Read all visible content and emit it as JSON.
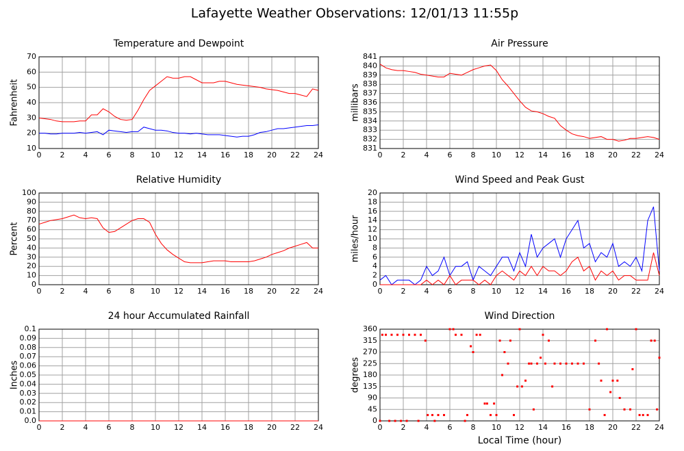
{
  "title": "Lafayette Weather Observations: 12/01/13 11:55p",
  "chart_data": [
    {
      "type": "line",
      "title": "Temperature and Dewpoint",
      "ylabel": "Fahrenheit",
      "x": [
        0,
        0.5,
        1,
        1.5,
        2,
        2.5,
        3,
        3.5,
        4,
        4.5,
        5,
        5.5,
        6,
        6.5,
        7,
        7.5,
        8,
        8.5,
        9,
        9.5,
        10,
        10.5,
        11,
        11.5,
        12,
        12.5,
        13,
        13.5,
        14,
        14.5,
        15,
        15.5,
        16,
        16.5,
        17,
        17.5,
        18,
        18.5,
        19,
        19.5,
        20,
        20.5,
        21,
        21.5,
        22,
        22.5,
        23,
        23.5,
        24
      ],
      "series": [
        {
          "color": "#ff0000",
          "values": [
            30,
            29.5,
            29,
            28,
            27.5,
            27.5,
            27.5,
            28,
            28,
            32,
            32,
            36,
            34,
            31,
            29,
            28.5,
            29,
            35,
            42,
            48,
            51,
            54,
            57,
            56,
            56,
            57,
            57,
            55,
            53,
            53,
            53,
            54,
            54,
            53,
            52,
            51.5,
            51,
            50.5,
            50,
            49,
            48.5,
            48,
            47,
            46,
            46,
            45,
            44,
            49,
            48
          ]
        },
        {
          "color": "#0000ff",
          "values": [
            20,
            20,
            19.5,
            19.5,
            20,
            20,
            20,
            20.5,
            20,
            20.5,
            21,
            19,
            22,
            21.5,
            21,
            20.5,
            21,
            21,
            24,
            23,
            22,
            22,
            21.5,
            20.5,
            20,
            20,
            19.5,
            20,
            19.5,
            19,
            19,
            19,
            18.5,
            18,
            17.5,
            18,
            18,
            19,
            20.5,
            21,
            22,
            23,
            23,
            23.5,
            24,
            24.5,
            25,
            25,
            25.5
          ]
        }
      ],
      "xlim": [
        0,
        24
      ],
      "xticks": [
        0,
        2,
        4,
        6,
        8,
        10,
        12,
        14,
        16,
        18,
        20,
        22,
        24
      ],
      "ylim": [
        10,
        70
      ],
      "yticks": [
        10,
        20,
        30,
        40,
        50,
        60,
        70
      ],
      "grid": true
    },
    {
      "type": "line",
      "title": "Air Pressure",
      "ylabel": "millibars",
      "x": [
        0,
        0.5,
        1,
        1.5,
        2,
        2.5,
        3,
        3.5,
        4,
        4.5,
        5,
        5.5,
        6,
        6.5,
        7,
        7.5,
        8,
        8.5,
        9,
        9.5,
        10,
        10.5,
        11,
        11.5,
        12,
        12.5,
        13,
        13.5,
        14,
        14.5,
        15,
        15.5,
        16,
        16.5,
        17,
        17.5,
        18,
        18.5,
        19,
        19.5,
        20,
        20.5,
        21,
        21.5,
        22,
        22.5,
        23,
        23.5,
        24
      ],
      "series": [
        {
          "color": "#ff0000",
          "values": [
            840.2,
            839.8,
            839.6,
            839.5,
            839.5,
            839.4,
            839.3,
            839.1,
            839,
            838.9,
            838.8,
            838.8,
            839.2,
            839.1,
            839,
            839.3,
            839.6,
            839.8,
            840,
            840.1,
            839.5,
            838.5,
            837.8,
            837,
            836.2,
            835.5,
            835.1,
            835,
            834.8,
            834.5,
            834.3,
            833.5,
            833,
            832.6,
            832.4,
            832.3,
            832.1,
            832.2,
            832.3,
            832,
            832,
            831.8,
            831.9,
            832.1,
            832.1,
            832.2,
            832.3,
            832.2,
            832
          ]
        }
      ],
      "xlim": [
        0,
        24
      ],
      "xticks": [
        0,
        2,
        4,
        6,
        8,
        10,
        12,
        14,
        16,
        18,
        20,
        22,
        24
      ],
      "ylim": [
        831,
        841
      ],
      "yticks": [
        831,
        832,
        833,
        834,
        835,
        836,
        837,
        838,
        839,
        840,
        841
      ],
      "grid": true
    },
    {
      "type": "line",
      "title": "Relative Humidity",
      "ylabel": "Percent",
      "x": [
        0,
        0.5,
        1,
        1.5,
        2,
        2.5,
        3,
        3.5,
        4,
        4.5,
        5,
        5.5,
        6,
        6.5,
        7,
        7.5,
        8,
        8.5,
        9,
        9.5,
        10,
        10.5,
        11,
        11.5,
        12,
        12.5,
        13,
        13.5,
        14,
        14.5,
        15,
        15.5,
        16,
        16.5,
        17,
        17.5,
        18,
        18.5,
        19,
        19.5,
        20,
        20.5,
        21,
        21.5,
        22,
        22.5,
        23,
        23.5,
        24
      ],
      "series": [
        {
          "color": "#ff0000",
          "values": [
            66,
            68,
            70,
            71,
            72,
            74,
            76,
            73,
            72,
            73,
            72,
            62,
            57,
            58,
            62,
            66,
            70,
            72,
            72,
            68,
            55,
            45,
            38,
            33,
            29,
            25,
            24,
            24,
            24,
            25,
            26,
            26,
            26,
            25,
            25,
            25,
            25,
            26,
            28,
            30,
            33,
            35,
            37,
            40,
            42,
            44,
            46,
            40,
            40
          ]
        }
      ],
      "xlim": [
        0,
        24
      ],
      "xticks": [
        0,
        2,
        4,
        6,
        8,
        10,
        12,
        14,
        16,
        18,
        20,
        22,
        24
      ],
      "ylim": [
        0,
        100
      ],
      "yticks": [
        0,
        10,
        20,
        30,
        40,
        50,
        60,
        70,
        80,
        90,
        100
      ],
      "grid": true
    },
    {
      "type": "line",
      "title": "Wind Speed and Peak Gust",
      "ylabel": "miles/hour",
      "x": [
        0,
        0.5,
        1,
        1.5,
        2,
        2.5,
        3,
        3.5,
        4,
        4.5,
        5,
        5.5,
        6,
        6.5,
        7,
        7.5,
        8,
        8.5,
        9,
        9.5,
        10,
        10.5,
        11,
        11.5,
        12,
        12.5,
        13,
        13.5,
        14,
        14.5,
        15,
        15.5,
        16,
        16.5,
        17,
        17.5,
        18,
        18.5,
        19,
        19.5,
        20,
        20.5,
        21,
        21.5,
        22,
        22.5,
        23,
        23.5,
        24
      ],
      "series": [
        {
          "color": "#0000ff",
          "values": [
            1,
            2,
            0,
            1,
            1,
            1,
            0,
            1,
            4,
            2,
            3,
            6,
            2,
            4,
            4,
            5,
            1,
            4,
            3,
            2,
            4,
            6,
            6,
            3,
            7,
            4,
            11,
            6,
            8,
            9,
            10,
            6,
            10,
            12,
            14,
            8,
            9,
            5,
            7,
            6,
            9,
            4,
            5,
            4,
            6,
            3,
            14,
            17,
            3
          ]
        },
        {
          "color": "#ff0000",
          "values": [
            0,
            0,
            0,
            0,
            0,
            0,
            0,
            0,
            1,
            0,
            1,
            0,
            2,
            0,
            1,
            1,
            1,
            0,
            1,
            0,
            2,
            3,
            2,
            1,
            3,
            2,
            4,
            2,
            4,
            3,
            3,
            2,
            3,
            5,
            6,
            3,
            4,
            1,
            3,
            2,
            3,
            1,
            2,
            2,
            1,
            1,
            1,
            7,
            2
          ]
        }
      ],
      "xlim": [
        0,
        24
      ],
      "xticks": [
        0,
        2,
        4,
        6,
        8,
        10,
        12,
        14,
        16,
        18,
        20,
        22,
        24
      ],
      "ylim": [
        0,
        20
      ],
      "yticks": [
        0,
        2,
        4,
        6,
        8,
        10,
        12,
        14,
        16,
        18,
        20
      ],
      "grid": true
    },
    {
      "type": "line",
      "title": "24 hour Accumulated Rainfall",
      "ylabel": "Inches",
      "x": [
        0,
        24
      ],
      "series": [
        {
          "color": "#ff0000",
          "values": [
            0,
            0
          ]
        }
      ],
      "xlim": [
        0,
        24
      ],
      "xticks": [
        0,
        2,
        4,
        6,
        8,
        10,
        12,
        14,
        16,
        18,
        20,
        22,
        24
      ],
      "ylim": [
        0,
        0.1
      ],
      "yticks": [
        {
          "value": 0,
          "label": "0.0"
        },
        0.01,
        0.02,
        0.03,
        0.04,
        0.05,
        0.06,
        0.07,
        0.08,
        0.09,
        0.1
      ],
      "grid": true
    },
    {
      "type": "scatter",
      "title": "Wind Direction",
      "ylabel": "degrees",
      "xlabel": "Local Time (hour)",
      "x": [
        0,
        0.2,
        0.5,
        0.8,
        1,
        1.3,
        1.5,
        1.8,
        2,
        2.3,
        2.5,
        3,
        3.3,
        3.5,
        3.9,
        4.1,
        4.5,
        4.7,
        5,
        5.5,
        6,
        6.3,
        6.5,
        7,
        7.3,
        7.5,
        7.8,
        8,
        8.3,
        8.6,
        9,
        9.2,
        9.5,
        9.8,
        10,
        10.3,
        10.5,
        10.7,
        11,
        11.2,
        11.5,
        11.8,
        12,
        12.2,
        12.5,
        12.8,
        13,
        13.2,
        13.5,
        13.8,
        14,
        14.2,
        14.5,
        14.8,
        15,
        15.5,
        16,
        16.5,
        17,
        17.5,
        18,
        18.5,
        18.8,
        19,
        19.3,
        19.5,
        19.8,
        20,
        20.4,
        20.6,
        21,
        21.5,
        21.7,
        22,
        22.3,
        22.6,
        23,
        23.3,
        23.6,
        23.8,
        24
      ],
      "series": [
        {
          "color": "#ff0000",
          "values": [
            0,
            338,
            338,
            0,
            338,
            0,
            338,
            0,
            338,
            0,
            338,
            338,
            0,
            338,
            315,
            23,
            23,
            0,
            23,
            23,
            360,
            360,
            338,
            338,
            0,
            23,
            293,
            270,
            338,
            338,
            68,
            68,
            23,
            68,
            23,
            315,
            180,
            270,
            225,
            315,
            23,
            135,
            360,
            135,
            158,
            225,
            225,
            45,
            225,
            248,
            338,
            225,
            315,
            135,
            225,
            225,
            225,
            225,
            225,
            225,
            45,
            315,
            225,
            158,
            23,
            360,
            113,
            158,
            158,
            90,
            45,
            45,
            203,
            360,
            23,
            23,
            23,
            315,
            315,
            45,
            248
          ]
        }
      ],
      "xlim": [
        0,
        24
      ],
      "xticks": [
        0,
        2,
        4,
        6,
        8,
        10,
        12,
        14,
        16,
        18,
        20,
        22,
        24
      ],
      "ylim": [
        0,
        360
      ],
      "yticks": [
        0,
        45,
        90,
        135,
        180,
        225,
        270,
        315,
        360
      ],
      "grid": true
    }
  ]
}
